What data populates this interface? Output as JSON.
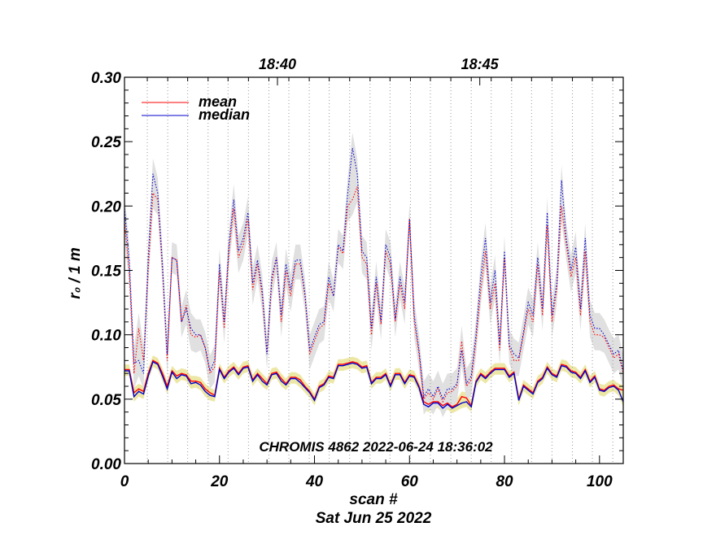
{
  "chart_data": {
    "type": "line",
    "title": "",
    "annotation": "CHROMIS 4862 2022-06-24 18:36:02",
    "xlabel": "scan #",
    "xlabel2": "Sat Jun 25 2022",
    "ylabel": "r₀ / 1 m",
    "xlim": [
      0,
      105
    ],
    "ylim": [
      0.0,
      0.3
    ],
    "x_ticks": [
      0,
      20,
      40,
      60,
      80,
      100
    ],
    "x_tick_labels": [
      "0",
      "20",
      "40",
      "60",
      "80",
      "100"
    ],
    "y_ticks": [
      0.0,
      0.05,
      0.1,
      0.15,
      0.2,
      0.25,
      0.3
    ],
    "y_tick_labels": [
      "0.00",
      "0.05",
      "0.10",
      "0.15",
      "0.20",
      "0.25",
      "0.30"
    ],
    "top_time_ticks": [
      {
        "x": 32.2,
        "label": "18:40"
      },
      {
        "x": 74.8,
        "label": "18:45"
      }
    ],
    "minute_gridlines_x": [
      4.8,
      9.1,
      13.3,
      17.6,
      21.8,
      26.1,
      30.4,
      34.6,
      38.9,
      43.1,
      47.4,
      51.7,
      55.9,
      60.2,
      64.4,
      68.7,
      73.0,
      77.2,
      81.5,
      85.7,
      90.0,
      94.3,
      98.5,
      102.8
    ],
    "legend": [
      {
        "label": "mean",
        "color": "#ff0000"
      },
      {
        "label": "median",
        "color": "#0000cc"
      }
    ],
    "legend_position": "top-left",
    "colors": {
      "mean": "#ff0000",
      "median": "#0000cc",
      "band_low": "#ede7a6",
      "band_high": "#e0e0e0"
    },
    "x": [
      0,
      1,
      2,
      3,
      4,
      5,
      6,
      7,
      8,
      9,
      10,
      11,
      12,
      13,
      14,
      15,
      16,
      17,
      18,
      19,
      20,
      21,
      22,
      23,
      24,
      25,
      26,
      27,
      28,
      29,
      30,
      31,
      32,
      33,
      34,
      35,
      36,
      37,
      38,
      39,
      40,
      41,
      42,
      43,
      44,
      45,
      46,
      47,
      48,
      49,
      50,
      51,
      52,
      53,
      54,
      55,
      56,
      57,
      58,
      59,
      60,
      61,
      62,
      63,
      64,
      65,
      66,
      67,
      68,
      69,
      70,
      71,
      72,
      73,
      74,
      75,
      76,
      77,
      78,
      79,
      80,
      81,
      82,
      83,
      84,
      85,
      86,
      87,
      88,
      89,
      90,
      91,
      92,
      93,
      94,
      95,
      96,
      97,
      98,
      99,
      100,
      101,
      102,
      103,
      104,
      105
    ],
    "series": [
      {
        "name": "mean",
        "group": "low",
        "values": [
          0.073,
          0.073,
          0.055,
          0.058,
          0.056,
          0.07,
          0.08,
          0.078,
          0.07,
          0.06,
          0.072,
          0.068,
          0.07,
          0.069,
          0.064,
          0.064,
          0.063,
          0.058,
          0.055,
          0.053,
          0.074,
          0.067,
          0.072,
          0.075,
          0.07,
          0.075,
          0.076,
          0.065,
          0.07,
          0.066,
          0.062,
          0.07,
          0.071,
          0.066,
          0.062,
          0.067,
          0.067,
          0.065,
          0.06,
          0.056,
          0.05,
          0.06,
          0.062,
          0.068,
          0.067,
          0.077,
          0.077,
          0.078,
          0.079,
          0.078,
          0.075,
          0.076,
          0.063,
          0.067,
          0.067,
          0.07,
          0.061,
          0.07,
          0.07,
          0.063,
          0.069,
          0.068,
          0.06,
          0.048,
          0.046,
          0.048,
          0.048,
          0.045,
          0.047,
          0.044,
          0.046,
          0.052,
          0.051,
          0.045,
          0.064,
          0.07,
          0.067,
          0.071,
          0.074,
          0.074,
          0.074,
          0.068,
          0.071,
          0.05,
          0.061,
          0.058,
          0.055,
          0.064,
          0.067,
          0.075,
          0.07,
          0.068,
          0.077,
          0.076,
          0.072,
          0.071,
          0.067,
          0.073,
          0.064,
          0.068,
          0.058,
          0.057,
          0.06,
          0.061,
          0.058,
          0.057
        ]
      },
      {
        "name": "median",
        "group": "low",
        "values": [
          0.072,
          0.072,
          0.052,
          0.056,
          0.054,
          0.068,
          0.079,
          0.077,
          0.068,
          0.058,
          0.071,
          0.066,
          0.069,
          0.068,
          0.062,
          0.063,
          0.061,
          0.056,
          0.053,
          0.052,
          0.073,
          0.066,
          0.071,
          0.074,
          0.069,
          0.074,
          0.075,
          0.064,
          0.069,
          0.064,
          0.061,
          0.069,
          0.07,
          0.064,
          0.061,
          0.066,
          0.066,
          0.063,
          0.059,
          0.055,
          0.049,
          0.059,
          0.061,
          0.067,
          0.066,
          0.076,
          0.076,
          0.077,
          0.078,
          0.077,
          0.074,
          0.075,
          0.062,
          0.066,
          0.066,
          0.069,
          0.06,
          0.069,
          0.069,
          0.062,
          0.068,
          0.067,
          0.059,
          0.046,
          0.044,
          0.047,
          0.047,
          0.043,
          0.046,
          0.043,
          0.045,
          0.047,
          0.048,
          0.044,
          0.063,
          0.069,
          0.066,
          0.07,
          0.073,
          0.073,
          0.073,
          0.067,
          0.07,
          0.049,
          0.06,
          0.057,
          0.054,
          0.063,
          0.066,
          0.074,
          0.069,
          0.067,
          0.076,
          0.075,
          0.071,
          0.07,
          0.066,
          0.072,
          0.063,
          0.067,
          0.057,
          0.056,
          0.059,
          0.06,
          0.057,
          0.048
        ]
      },
      {
        "name": "mean",
        "group": "high",
        "values": [
          0.188,
          0.15,
          0.07,
          0.105,
          0.08,
          0.15,
          0.21,
          0.205,
          0.15,
          0.08,
          0.16,
          0.158,
          0.11,
          0.123,
          0.1,
          0.098,
          0.1,
          0.09,
          0.07,
          0.075,
          0.15,
          0.105,
          0.165,
          0.198,
          0.16,
          0.17,
          0.19,
          0.135,
          0.155,
          0.13,
          0.085,
          0.14,
          0.16,
          0.11,
          0.15,
          0.13,
          0.155,
          0.155,
          0.13,
          0.085,
          0.095,
          0.105,
          0.108,
          0.14,
          0.13,
          0.168,
          0.163,
          0.2,
          0.205,
          0.215,
          0.16,
          0.155,
          0.1,
          0.14,
          0.108,
          0.165,
          0.155,
          0.11,
          0.14,
          0.12,
          0.19,
          0.11,
          0.085,
          0.05,
          0.055,
          0.05,
          0.058,
          0.048,
          0.055,
          0.056,
          0.06,
          0.095,
          0.06,
          0.065,
          0.095,
          0.135,
          0.165,
          0.12,
          0.14,
          0.088,
          0.16,
          0.09,
          0.08,
          0.08,
          0.1,
          0.12,
          0.11,
          0.155,
          0.115,
          0.185,
          0.11,
          0.135,
          0.2,
          0.17,
          0.145,
          0.16,
          0.115,
          0.165,
          0.11,
          0.1,
          0.1,
          0.098,
          0.09,
          0.082,
          0.085,
          0.07
        ]
      },
      {
        "name": "median",
        "group": "high",
        "values": [
          0.198,
          0.158,
          0.078,
          0.08,
          0.07,
          0.16,
          0.225,
          0.21,
          0.155,
          0.085,
          0.16,
          0.158,
          0.11,
          0.12,
          0.105,
          0.1,
          0.1,
          0.09,
          0.072,
          0.08,
          0.155,
          0.11,
          0.17,
          0.205,
          0.165,
          0.175,
          0.195,
          0.14,
          0.158,
          0.135,
          0.085,
          0.145,
          0.16,
          0.115,
          0.155,
          0.135,
          0.158,
          0.158,
          0.132,
          0.088,
          0.098,
          0.108,
          0.11,
          0.145,
          0.13,
          0.17,
          0.165,
          0.21,
          0.245,
          0.225,
          0.165,
          0.16,
          0.105,
          0.145,
          0.11,
          0.17,
          0.16,
          0.112,
          0.145,
          0.125,
          0.19,
          0.115,
          0.088,
          0.052,
          0.058,
          0.052,
          0.06,
          0.05,
          0.058,
          0.058,
          0.062,
          0.088,
          0.062,
          0.068,
          0.1,
          0.145,
          0.175,
          0.125,
          0.15,
          0.092,
          0.165,
          0.092,
          0.085,
          0.082,
          0.102,
          0.125,
          0.115,
          0.16,
          0.12,
          0.195,
          0.115,
          0.14,
          0.22,
          0.175,
          0.15,
          0.168,
          0.12,
          0.175,
          0.115,
          0.105,
          0.105,
          0.1,
          0.092,
          0.085,
          0.088,
          0.072
        ]
      }
    ]
  }
}
